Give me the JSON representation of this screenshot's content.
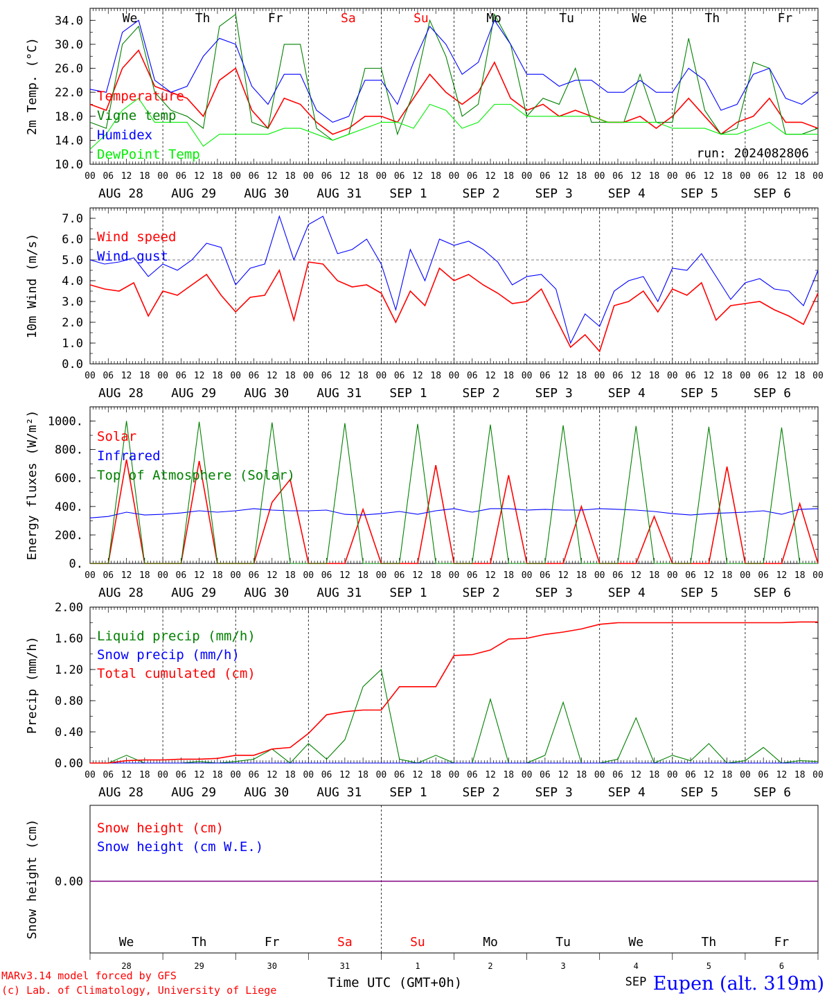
{
  "footer": {
    "model_credit": "MARv3.14 model forced by GFS",
    "lab_credit": "(c) Lab. of Climatology, University of Liege",
    "time_axis_label": "Time UTC (GMT+0h)",
    "location": "Eupen (alt. 319m)",
    "month_label": "SEP"
  },
  "colors": {
    "red": "#ff0000",
    "green": "#008000",
    "blue": "#0000ff",
    "lightgreen": "#00ee00",
    "purple": "#800080",
    "weekend": "#ff0000"
  },
  "days": {
    "weekday_labels": [
      "We",
      "Th",
      "Fr",
      "Sa",
      "Su",
      "Mo",
      "Tu",
      "We",
      "Th",
      "Fr"
    ],
    "weekend_flags": [
      false,
      false,
      false,
      true,
      true,
      false,
      false,
      false,
      false,
      false
    ],
    "date_labels": [
      "AUG 28",
      "AUG 29",
      "AUG 30",
      "AUG 31",
      "SEP  1",
      "SEP  2",
      "SEP  3",
      "SEP  4",
      "SEP  5",
      "SEP  6"
    ],
    "day_numbers": [
      "28",
      "29",
      "30",
      "31",
      "1",
      "2",
      "3",
      "4",
      "5",
      "6"
    ],
    "hour_ticks": [
      "00",
      "06",
      "12",
      "18"
    ],
    "final_tick": "00"
  },
  "chart_data": [
    {
      "type": "line",
      "ylabel": "2m Temp. (°C)",
      "ylim": [
        10,
        36
      ],
      "yticks": [
        "10.0",
        "14.0",
        "18.0",
        "22.0",
        "26.0",
        "30.0",
        "34.0"
      ],
      "annotation": "run: 2024082806",
      "x_hours_step": 6,
      "series": [
        {
          "name": "Temperature",
          "color": "red",
          "values": [
            20,
            19,
            26,
            29,
            23,
            22,
            21,
            18,
            24,
            26,
            19,
            16,
            21,
            20,
            17,
            15,
            16,
            18,
            18,
            17,
            21,
            25,
            22,
            20,
            22,
            27,
            21,
            19,
            20,
            18,
            19,
            18,
            17,
            17,
            18,
            16,
            18,
            21,
            18,
            15,
            17,
            18,
            21,
            17,
            17,
            16
          ]
        },
        {
          "name": "Vigne temp",
          "color": "green",
          "values": [
            17,
            16,
            30,
            33,
            22,
            19,
            18,
            16,
            33,
            35,
            17,
            16,
            30,
            30,
            16,
            14,
            15,
            26,
            26,
            15,
            22,
            34,
            28,
            18,
            20,
            35,
            30,
            18,
            21,
            20,
            26,
            17,
            17,
            17,
            25,
            17,
            17,
            31,
            19,
            15,
            16,
            27,
            26,
            15,
            15,
            16
          ]
        },
        {
          "name": "Humidex",
          "color": "blue",
          "values": [
            22.5,
            22,
            32,
            34,
            24,
            22,
            23,
            28,
            31,
            30,
            23,
            20,
            25,
            25,
            19,
            17,
            18,
            24,
            24,
            20,
            27,
            33,
            30,
            25,
            27,
            34,
            30,
            25,
            25,
            23,
            24,
            24,
            22,
            22,
            24,
            22,
            22,
            26,
            24,
            19,
            20,
            25,
            26,
            21,
            20,
            22
          ]
        },
        {
          "name": "DewPoint Temp",
          "color": "lightgreen",
          "values": [
            12.5,
            15,
            19,
            21,
            17,
            17,
            17,
            13,
            15,
            15,
            15,
            15,
            16,
            16,
            15,
            14,
            15,
            16,
            17,
            17,
            16,
            20,
            19,
            16,
            17,
            20,
            20,
            18,
            18,
            18,
            18,
            18,
            17,
            17,
            17,
            17,
            16,
            16,
            16,
            15,
            15,
            16,
            17,
            15,
            15,
            15
          ]
        }
      ]
    },
    {
      "type": "line",
      "ylabel": "10m Wind (m/s)",
      "ylim": [
        0,
        7.5
      ],
      "yticks": [
        "0.0",
        "1.0",
        "2.0",
        "3.0",
        "4.0",
        "5.0",
        "6.0",
        "7.0"
      ],
      "reference_line": 5.0,
      "x_hours_step": 6,
      "series": [
        {
          "name": "Wind speed",
          "color": "red",
          "values": [
            3.8,
            3.6,
            3.5,
            3.9,
            2.3,
            3.5,
            3.3,
            3.8,
            4.3,
            3.3,
            2.5,
            3.2,
            3.3,
            4.5,
            2.1,
            4.9,
            4.8,
            4.0,
            3.7,
            3.8,
            3.4,
            2.0,
            3.5,
            2.8,
            4.6,
            4.0,
            4.3,
            3.8,
            3.4,
            2.9,
            3.0,
            3.6,
            2.2,
            0.8,
            1.4,
            0.6,
            2.8,
            3.0,
            3.5,
            2.5,
            3.6,
            3.3,
            3.9,
            2.1,
            2.8,
            2.9,
            3.0,
            2.6,
            2.3,
            1.9,
            3.4
          ]
        },
        {
          "name": "Wind gust",
          "color": "blue",
          "values": [
            5.0,
            4.8,
            4.9,
            5.1,
            4.2,
            4.8,
            4.5,
            5.0,
            5.8,
            5.6,
            3.8,
            4.6,
            4.8,
            7.1,
            5.0,
            6.7,
            7.1,
            5.3,
            5.5,
            6.0,
            4.8,
            2.6,
            5.5,
            4.0,
            6.0,
            5.7,
            5.9,
            5.5,
            4.9,
            3.8,
            4.2,
            4.3,
            3.6,
            1.0,
            2.4,
            1.8,
            3.5,
            4.0,
            4.2,
            3.0,
            4.6,
            4.5,
            5.3,
            4.2,
            3.1,
            3.9,
            4.1,
            3.6,
            3.5,
            2.8,
            4.5
          ]
        }
      ]
    },
    {
      "type": "line",
      "ylabel": "Energy fluxes (W/m²)",
      "ylim": [
        0,
        1100
      ],
      "yticks": [
        "0.",
        "200.",
        "400.",
        "600.",
        "800.",
        "1000."
      ],
      "x_hours_step": 6,
      "series": [
        {
          "name": "Solar",
          "color": "red",
          "values": [
            0,
            0,
            730,
            0,
            0,
            0,
            720,
            0,
            0,
            0,
            430,
            590,
            0,
            0,
            0,
            380,
            0,
            0,
            0,
            690,
            0,
            0,
            0,
            620,
            0,
            0,
            0,
            400,
            0,
            0,
            0,
            330,
            0,
            0,
            0,
            680,
            0,
            0,
            0,
            420,
            0
          ]
        },
        {
          "name": "Infrared",
          "color": "blue",
          "values": [
            320,
            330,
            360,
            340,
            345,
            355,
            370,
            360,
            370,
            385,
            375,
            370,
            370,
            375,
            345,
            340,
            350,
            365,
            345,
            370,
            385,
            360,
            385,
            385,
            375,
            380,
            375,
            375,
            385,
            380,
            375,
            365,
            350,
            340,
            350,
            355,
            360,
            370,
            345,
            380,
            385
          ]
        },
        {
          "name": "Top of Atmosphere (Solar)",
          "color": "green",
          "values": [
            0,
            0,
            1000,
            0,
            0,
            0,
            995,
            0,
            0,
            0,
            990,
            0,
            0,
            0,
            985,
            0,
            0,
            0,
            980,
            0,
            0,
            0,
            975,
            0,
            0,
            0,
            970,
            0,
            0,
            0,
            965,
            0,
            0,
            0,
            960,
            0,
            0,
            0,
            955,
            0,
            0
          ]
        }
      ]
    },
    {
      "type": "line",
      "ylabel": "Precip (mm/h)",
      "ylim": [
        0,
        2.0
      ],
      "yticks": [
        "0.00",
        "0.40",
        "0.80",
        "1.20",
        "1.60",
        "2.00"
      ],
      "x_hours_step": 6,
      "series": [
        {
          "name": "Liquid precip (mm/h)",
          "color": "green",
          "values": [
            0,
            0,
            0.1,
            0,
            0,
            0,
            0.02,
            0,
            0.02,
            0.05,
            0.18,
            0,
            0.25,
            0.05,
            0.3,
            0.98,
            1.2,
            0.05,
            0,
            0.1,
            0,
            0,
            0.82,
            0,
            0,
            0.1,
            0.78,
            0,
            0,
            0.05,
            0.58,
            0,
            0.1,
            0.03,
            0.25,
            0,
            0.03,
            0.2,
            0,
            0.03,
            0.02
          ]
        },
        {
          "name": "Snow precip (mm/h)",
          "color": "blue",
          "values": [
            0,
            0,
            0,
            0,
            0,
            0,
            0,
            0,
            0,
            0,
            0,
            0,
            0,
            0,
            0,
            0,
            0,
            0,
            0,
            0,
            0,
            0,
            0,
            0,
            0,
            0,
            0,
            0,
            0,
            0,
            0,
            0,
            0,
            0,
            0,
            0,
            0,
            0,
            0,
            0,
            0
          ]
        },
        {
          "name": "Total cumulated (cm)",
          "color": "red",
          "values": [
            0,
            0,
            0.03,
            0.04,
            0.04,
            0.05,
            0.05,
            0.06,
            0.1,
            0.1,
            0.18,
            0.2,
            0.38,
            0.62,
            0.66,
            0.68,
            0.68,
            0.98,
            0.98,
            0.98,
            1.38,
            1.39,
            1.45,
            1.59,
            1.6,
            1.65,
            1.68,
            1.72,
            1.78,
            1.8,
            1.8,
            1.8,
            1.8,
            1.8,
            1.8,
            1.8,
            1.8,
            1.8,
            1.8,
            1.81,
            1.81
          ]
        }
      ]
    },
    {
      "type": "line",
      "ylabel": "Snow height (cm)",
      "yticks": [
        "0.00"
      ],
      "series": [
        {
          "name": "Snow height (cm)",
          "color": "red",
          "values": [
            0,
            0
          ]
        },
        {
          "name": "Snow height (cm W.E.)",
          "color": "blue",
          "values": [
            0,
            0
          ]
        }
      ]
    }
  ]
}
